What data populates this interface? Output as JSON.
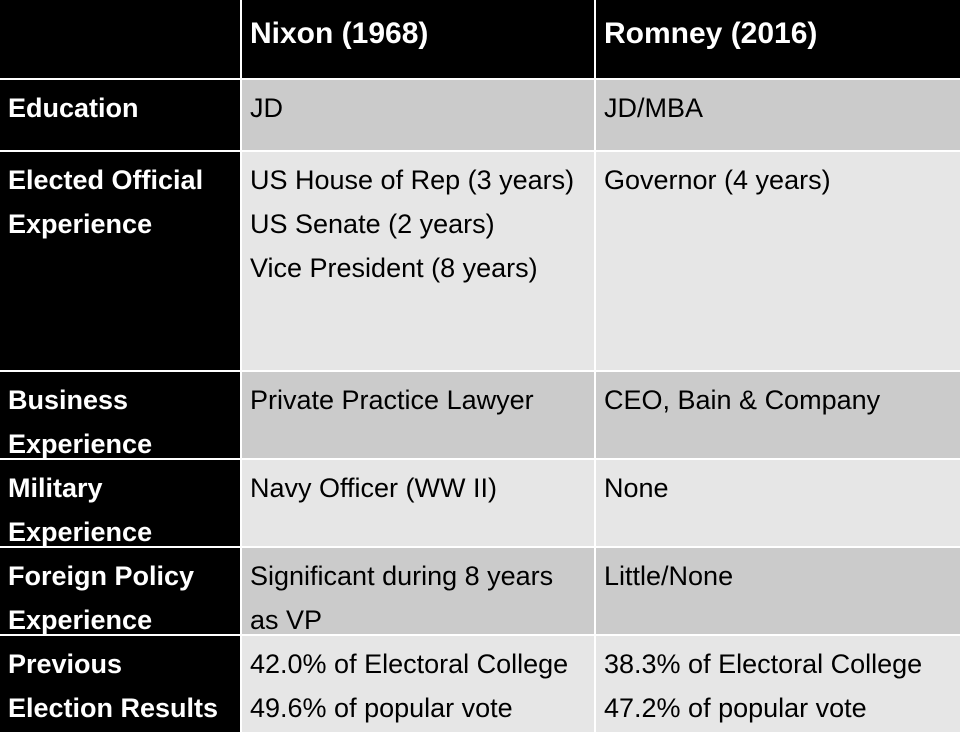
{
  "header": {
    "col1": "Nixon (1968)",
    "col2": "Romney (2016)"
  },
  "rows": [
    {
      "label": [
        "Education"
      ],
      "nixon": [
        "JD"
      ],
      "romney": [
        "JD/MBA"
      ]
    },
    {
      "label": [
        "Elected Official",
        "Experience"
      ],
      "nixon": [
        "US House of Rep (3 years)",
        "US Senate (2 years)",
        "Vice President (8 years)"
      ],
      "romney": [
        "Governor (4 years)"
      ]
    },
    {
      "label": [
        "Business",
        "Experience"
      ],
      "nixon": [
        "Private Practice Lawyer"
      ],
      "romney": [
        "CEO, Bain & Company"
      ]
    },
    {
      "label": [
        "Military",
        "Experience"
      ],
      "nixon": [
        "Navy Officer (WW II)"
      ],
      "romney": [
        "None"
      ]
    },
    {
      "label": [
        "Foreign Policy",
        "Experience"
      ],
      "nixon": [
        "Significant during 8 years",
        "as VP"
      ],
      "romney": [
        "Little/None"
      ]
    },
    {
      "label": [
        "Previous",
        "Election Results"
      ],
      "nixon": [
        "42.0% of Electoral College",
        "49.6% of popular vote"
      ],
      "romney": [
        "38.3% of Electoral College",
        "47.2% of popular vote"
      ]
    }
  ]
}
